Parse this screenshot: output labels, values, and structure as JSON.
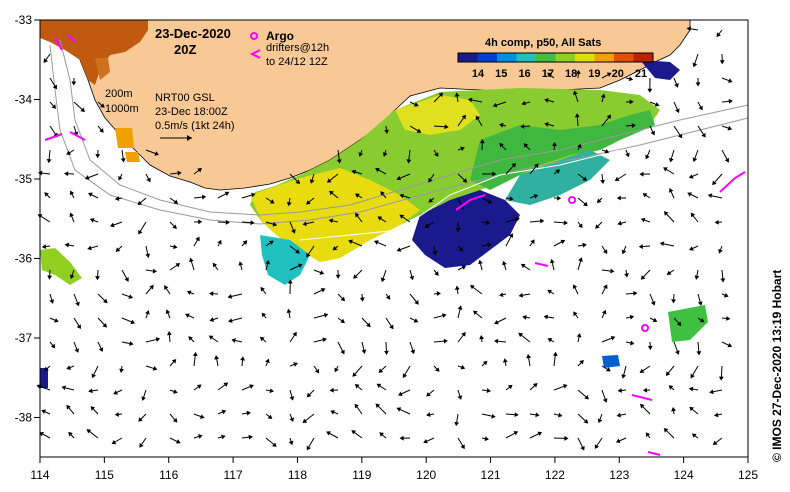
{
  "title": {
    "date": "23-Dec-2020",
    "hour": "20Z"
  },
  "legend": {
    "argo_label": "Argo",
    "drifters_line1": "drifters@12h",
    "drifters_line2": "to 24/12 12Z",
    "argo_color": "#ff00ff",
    "drifter_color": "#ff00ff"
  },
  "isobaths": {
    "label_200": "200m",
    "label_1000": "1000m"
  },
  "currents_info": {
    "line1": "NRT00 GSL",
    "line2": "23-Dec 18:00Z",
    "line3": "0.5m/s (1kt 24h)"
  },
  "colorbar": {
    "title": "4h comp, p50, All Sats",
    "ticks": [
      "14",
      "15",
      "16",
      "17",
      "18",
      "19",
      "20",
      "21"
    ],
    "colors": [
      "#1a1a8c",
      "#0040d0",
      "#0090e0",
      "#20c0c0",
      "#40c040",
      "#90d020",
      "#e0e000",
      "#f0a000",
      "#e05000",
      "#c02000"
    ]
  },
  "axes": {
    "x_ticks": [
      "114",
      "115",
      "116",
      "117",
      "118",
      "119",
      "120",
      "121",
      "122",
      "123",
      "124",
      "125"
    ],
    "y_ticks": [
      "-33",
      "-34",
      "-35",
      "-36",
      "-37",
      "-38"
    ]
  },
  "credit": "© IMOS 27-Dec-2020 13:19 Hobart",
  "colors": {
    "land": "#f9c995",
    "land_hinterland": "#c05a10"
  }
}
